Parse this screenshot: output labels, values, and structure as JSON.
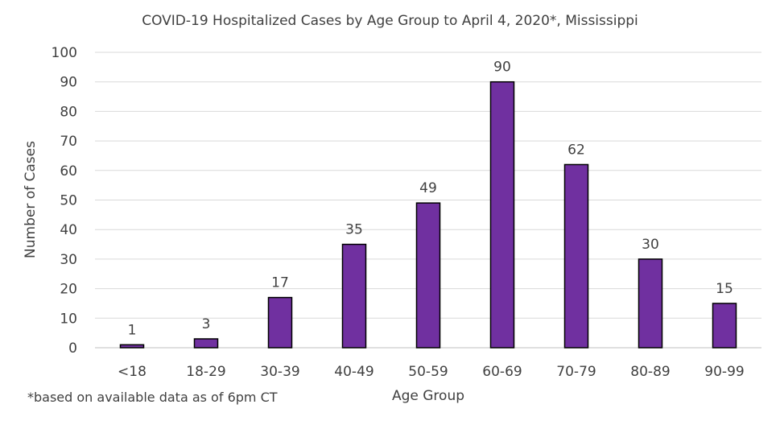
{
  "chart_data": {
    "type": "bar",
    "title": "COVID-19 Hospitalized Cases by Age Group to April 4, 2020*, Mississippi",
    "xlabel": "Age Group",
    "ylabel": "Number of Cases",
    "categories": [
      "<18",
      "18-29",
      "30-39",
      "40-49",
      "50-59",
      "60-69",
      "70-79",
      "80-89",
      "90-99"
    ],
    "values": [
      1,
      3,
      17,
      35,
      49,
      90,
      62,
      30,
      15
    ],
    "ylim": [
      0,
      100
    ],
    "yticks": [
      0,
      10,
      20,
      30,
      40,
      50,
      60,
      70,
      80,
      90,
      100
    ],
    "grid": true,
    "bar_color": "#7030A0",
    "bar_edge_color": "#000000",
    "footnote": "*based on available data as of 6pm CT"
  }
}
